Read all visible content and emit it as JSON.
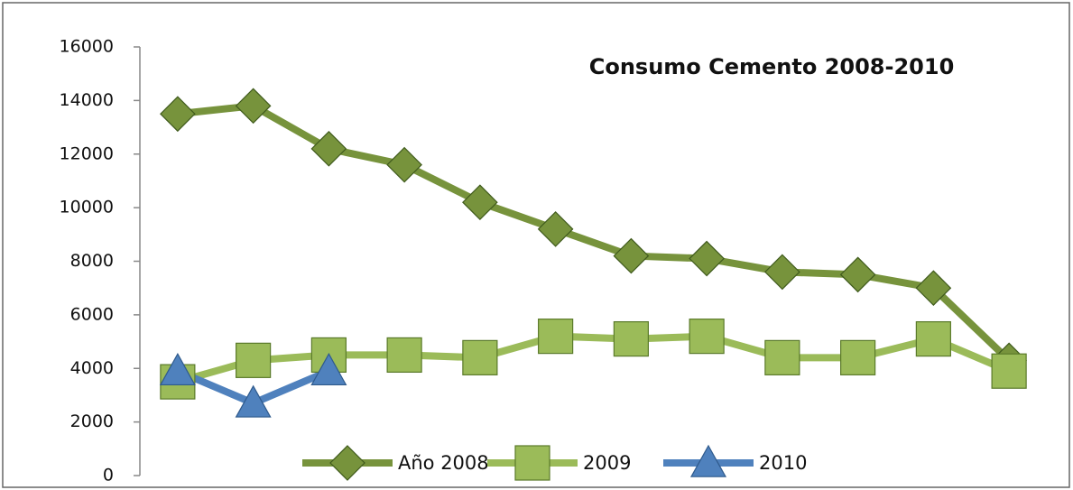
{
  "chart_data": {
    "type": "line",
    "title": "Consumo Cemento 2008-2010",
    "categories": [
      null,
      null,
      null,
      null,
      null,
      null,
      null,
      null,
      null,
      null,
      null,
      null
    ],
    "series": [
      {
        "name": "Año 2008",
        "color": "#77933c",
        "marker": "diamond",
        "values": [
          13500,
          13800,
          12200,
          11600,
          10200,
          9200,
          8200,
          8100,
          7600,
          7500,
          7000,
          4300
        ]
      },
      {
        "name": "2009",
        "color": "#9bbb59",
        "marker": "square",
        "values": [
          3500,
          4300,
          4500,
          4500,
          4400,
          5200,
          5100,
          5200,
          4400,
          4400,
          5100,
          3900
        ]
      },
      {
        "name": "2010",
        "color": "#4f81bd",
        "marker": "triangle",
        "values": [
          3900,
          2700,
          3900,
          null,
          null,
          null,
          null,
          null,
          null,
          null,
          null,
          null
        ]
      }
    ],
    "ylim": [
      0,
      16000
    ],
    "yticks": [
      0,
      2000,
      4000,
      6000,
      8000,
      10000,
      12000,
      14000,
      16000
    ],
    "grid": false,
    "legend": "bottom"
  }
}
